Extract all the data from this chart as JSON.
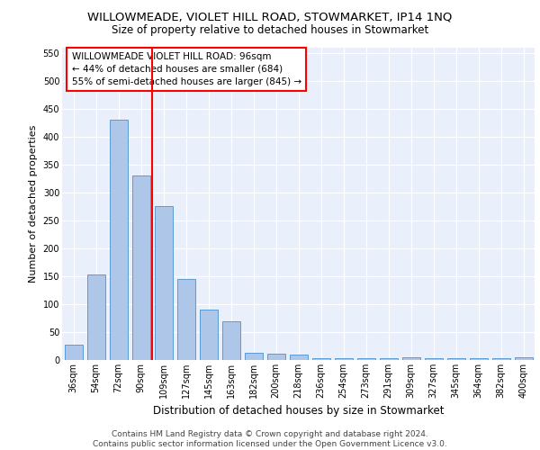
{
  "title": "WILLOWMEADE, VIOLET HILL ROAD, STOWMARKET, IP14 1NQ",
  "subtitle": "Size of property relative to detached houses in Stowmarket",
  "xlabel": "Distribution of detached houses by size in Stowmarket",
  "ylabel": "Number of detached properties",
  "categories": [
    "36sqm",
    "54sqm",
    "72sqm",
    "90sqm",
    "109sqm",
    "127sqm",
    "145sqm",
    "163sqm",
    "182sqm",
    "200sqm",
    "218sqm",
    "236sqm",
    "254sqm",
    "273sqm",
    "291sqm",
    "309sqm",
    "327sqm",
    "345sqm",
    "364sqm",
    "382sqm",
    "400sqm"
  ],
  "values": [
    28,
    153,
    430,
    330,
    275,
    145,
    90,
    70,
    13,
    11,
    10,
    4,
    4,
    4,
    4,
    5,
    4,
    4,
    4,
    4,
    5
  ],
  "bar_color": "#aec6e8",
  "bar_edge_color": "#5b9bd5",
  "redline_x": 3.5,
  "annotation_text": "WILLOWMEADE VIOLET HILL ROAD: 96sqm\n← 44% of detached houses are smaller (684)\n55% of semi-detached houses are larger (845) →",
  "ylim": [
    0,
    560
  ],
  "yticks": [
    0,
    50,
    100,
    150,
    200,
    250,
    300,
    350,
    400,
    450,
    500,
    550
  ],
  "background_color": "#eaf0fb",
  "grid_color": "#ffffff",
  "footer": "Contains HM Land Registry data © Crown copyright and database right 2024.\nContains public sector information licensed under the Open Government Licence v3.0.",
  "title_fontsize": 9.5,
  "subtitle_fontsize": 8.5,
  "xlabel_fontsize": 8.5,
  "ylabel_fontsize": 8,
  "tick_fontsize": 7,
  "annotation_fontsize": 7.5,
  "footer_fontsize": 6.5
}
